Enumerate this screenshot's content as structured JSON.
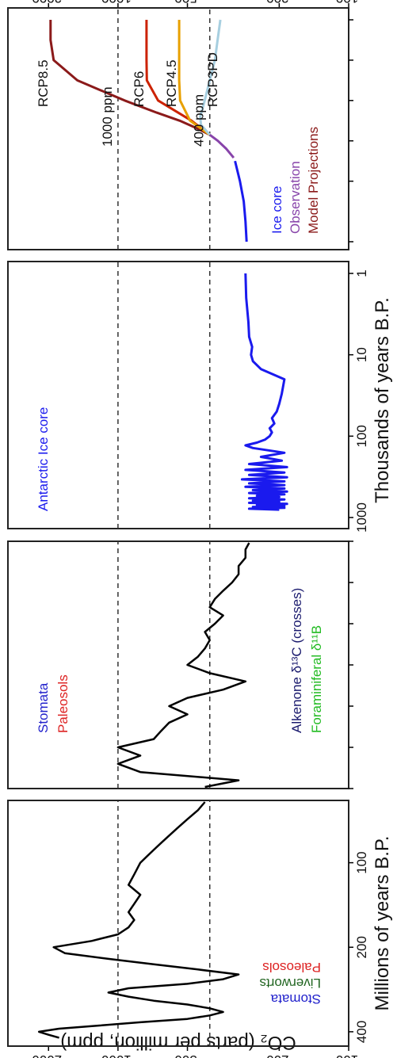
{
  "chart_data": {
    "type": "line",
    "ylabel": "CO₂ (parts per million, ppm)",
    "yscale": "log",
    "yticks": [
      100,
      200,
      500,
      1000,
      2000
    ],
    "reference_lines": [
      {
        "label": "1000 ppm",
        "value": 1000
      },
      {
        "label": "400 ppm",
        "value": 400
      }
    ],
    "x_axis_labels": [
      "Millions of years B.P.",
      "Thousands of years B.P."
    ],
    "panels": [
      {
        "xticks_labels": [
          "400",
          "200",
          "100"
        ],
        "xticks": [
          400,
          200,
          100
        ],
        "legend": [
          {
            "label": "Stomata",
            "color": "#2222cc"
          },
          {
            "label": "Liverworts",
            "color": "#226622"
          },
          {
            "label": "Paleosols",
            "color": "#dd2222"
          }
        ],
        "series": [
          {
            "name": "smoothed",
            "color": "#000000",
            "x": [
              420,
              410,
              400,
              390,
              380,
              370,
              360,
              350,
              340,
              330,
              320,
              310,
              300,
              290,
              280,
              270,
              260,
              250,
              240,
              230,
              220,
              210,
              200,
              190,
              180,
              170,
              160,
              150,
              140,
              130,
              120,
              110,
              100,
              95,
              90,
              85,
              80,
              75,
              70,
              65,
              60
            ],
            "y": [
              1800,
              2000,
              2200,
              1800,
              1200,
              800,
              500,
              400,
              350,
              400,
              500,
              700,
              900,
              1100,
              900,
              500,
              350,
              300,
              450,
              700,
              1100,
              1700,
              1900,
              1300,
              1000,
              900,
              850,
              900,
              850,
              800,
              900,
              850,
              800,
              750,
              700,
              650,
              600,
              550,
              500,
              450,
              420
            ]
          }
        ]
      },
      {
        "xticks": [
          60,
          50,
          40,
          30,
          20,
          10,
          0
        ],
        "legend": [
          {
            "label": "Stomata",
            "color": "#2222cc"
          },
          {
            "label": "Paleosols",
            "color": "#dd2222"
          },
          {
            "label": "Alkenone δ¹³C (crosses)",
            "color": "#1a1a6e"
          },
          {
            "label": "Foraminiferal δ¹¹B",
            "color": "#22bb22"
          }
        ],
        "series": [
          {
            "name": "smoothed",
            "color": "#000000",
            "x": [
              60,
              58,
              56,
              54,
              52,
              50,
              48,
              46,
              44,
              42,
              40,
              38,
              36,
              34,
              32,
              30,
              28,
              26,
              24,
              22,
              20,
              18,
              16,
              14,
              12,
              10,
              8,
              6,
              4,
              2,
              0
            ],
            "y": [
              420,
              300,
              800,
              1000,
              800,
              1000,
              700,
              650,
              600,
              500,
              600,
              500,
              350,
              280,
              400,
              500,
              450,
              420,
              400,
              420,
              380,
              350,
              400,
              380,
              350,
              320,
              300,
              300,
              280,
              280,
              270
            ]
          }
        ]
      },
      {
        "xticks_labels": [
          "1000",
          "100",
          "10",
          "1"
        ],
        "xticks": [
          1000,
          100,
          10,
          1
        ],
        "label": "Antarctic Ice core",
        "series": [
          {
            "name": "Antarctic Ice core",
            "color": "#1a1aee",
            "x": [
              800,
              780,
              760,
              740,
              720,
              700,
              680,
              660,
              640,
              620,
              600,
              580,
              560,
              540,
              520,
              500,
              480,
              460,
              440,
              420,
              400,
              380,
              360,
              340,
              320,
              300,
              280,
              260,
              240,
              220,
              200,
              180,
              160,
              140,
              130,
              120,
              110,
              100,
              90,
              80,
              70,
              60,
              50,
              40,
              30,
              20,
              15,
              12,
              10,
              8,
              6,
              4,
              2,
              1
            ],
            "y": [
              200,
              270,
              190,
              260,
              190,
              250,
              185,
              270,
              200,
              260,
              190,
              270,
              200,
              250,
              190,
              270,
              185,
              260,
              190,
              280,
              190,
              270,
              190,
              290,
              185,
              270,
              190,
              280,
              185,
              270,
              195,
              240,
              190,
              260,
              280,
              250,
              230,
              220,
              215,
              220,
              210,
              215,
              205,
              200,
              195,
              190,
              240,
              260,
              265,
              262,
              270,
              272,
              278,
              280
            ]
          }
        ]
      },
      {
        "xticks": [
          1750,
          1900,
          2000,
          2100,
          2200,
          2300
        ],
        "legend": [
          {
            "label": "Ice core",
            "color": "#1a1aee"
          },
          {
            "label": "Observation",
            "color": "#8844aa"
          },
          {
            "label": "Model Projections",
            "color": "#8b1a1a"
          }
        ],
        "series": [
          {
            "name": "Ice core",
            "color": "#1a1aee",
            "x": [
              1750,
              1800,
              1850,
              1900,
              1950
            ],
            "y": [
              277,
              280,
              285,
              296,
              311
            ]
          },
          {
            "name": "Observation",
            "color": "#8844aa",
            "x": [
              1958,
              1980,
              2000,
              2015
            ],
            "y": [
              315,
              339,
              369,
              400
            ]
          },
          {
            "name": "RCP8.5",
            "color": "#8b1a1a",
            "x": [
              2015,
              2030,
              2050,
              2070,
              2100,
              2150,
              2200,
              2250,
              2300
            ],
            "y": [
              400,
              450,
              540,
              680,
              936,
              1500,
              1900,
              1960,
              1960
            ]
          },
          {
            "name": "RCP6",
            "color": "#cc2200",
            "x": [
              2015,
              2050,
              2100,
              2150,
              2200,
              2250,
              2300
            ],
            "y": [
              400,
              480,
              670,
              750,
              752,
              752,
              752
            ]
          },
          {
            "name": "RCP4.5",
            "color": "#e8a000",
            "x": [
              2015,
              2050,
              2100,
              2150,
              2200,
              2250,
              2300
            ],
            "y": [
              400,
              487,
              538,
              543,
              543,
              543,
              543
            ]
          },
          {
            "name": "RCP3PD",
            "color": "#a7cfe0",
            "x": [
              2015,
              2040,
              2060,
              2100,
              2150,
              2200,
              2250,
              2300
            ],
            "y": [
              400,
              437,
              440,
              421,
              400,
              380,
              370,
              360
            ]
          }
        ]
      }
    ]
  }
}
